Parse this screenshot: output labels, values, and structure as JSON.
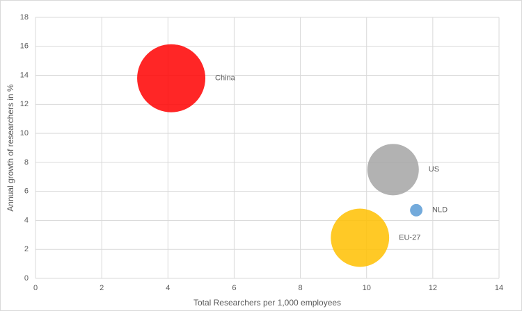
{
  "chart_data": {
    "type": "bubble",
    "xlabel": "Total Researchers per 1,000 employees",
    "ylabel": "Annual growth of researchers in %",
    "xlim": [
      0,
      14
    ],
    "xticks": [
      0,
      2,
      4,
      6,
      8,
      10,
      12,
      14
    ],
    "ylim": [
      0,
      18
    ],
    "yticks": [
      0,
      2,
      4,
      6,
      8,
      10,
      12,
      14,
      16,
      18
    ],
    "grid": true,
    "series": [
      {
        "name": "China",
        "color": "#ff0000",
        "x": [
          4.1
        ],
        "y": [
          13.8
        ],
        "size": [
          2400
        ]
      },
      {
        "name": "US",
        "color": "#a5a5a5",
        "x": [
          10.8
        ],
        "y": [
          7.5
        ],
        "size": [
          1370
        ]
      },
      {
        "name": "NLD",
        "color": "#5b9bd5",
        "x": [
          11.5
        ],
        "y": [
          4.7
        ],
        "size": [
          80
        ]
      },
      {
        "name": "EU-27",
        "color": "#ffc000",
        "x": [
          9.8
        ],
        "y": [
          2.8
        ],
        "size": [
          1760
        ]
      }
    ]
  }
}
